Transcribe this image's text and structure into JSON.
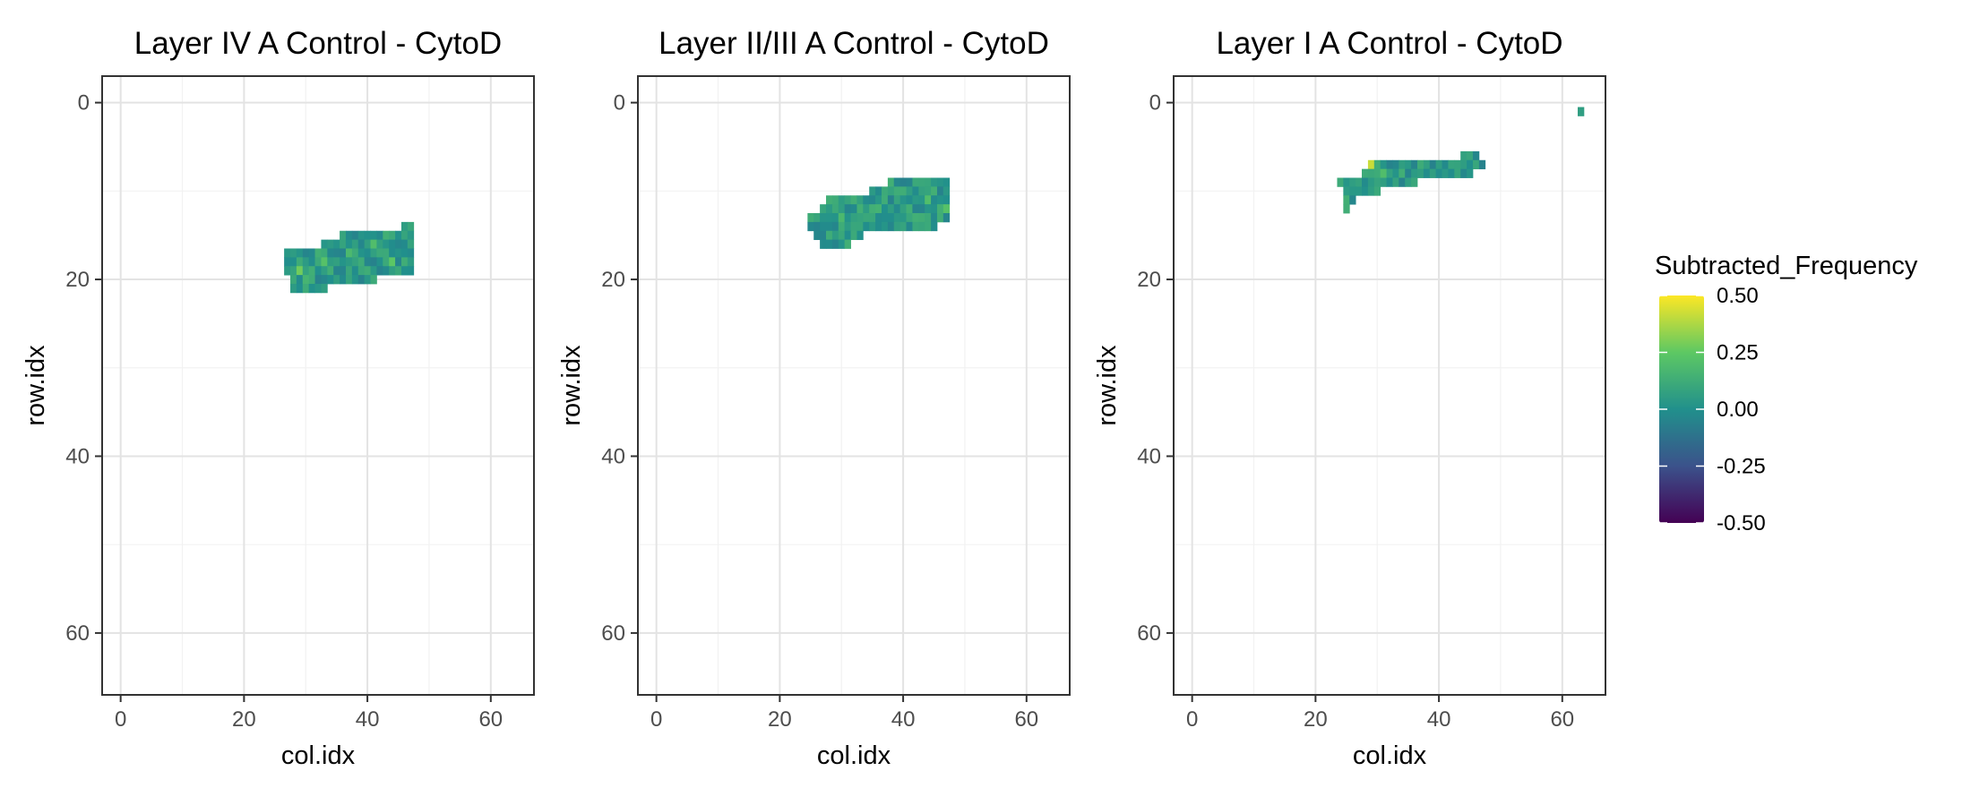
{
  "chart_data": [
    {
      "type": "heatmap",
      "title": "Layer IV A Control - CytoD",
      "xlabel": "col.idx",
      "ylabel": "row.idx",
      "xlim": [
        -3,
        67
      ],
      "ylim": [
        67,
        -3
      ],
      "y_reversed": true,
      "xticks": [
        0,
        20,
        40,
        60
      ],
      "yticks": [
        0,
        20,
        40,
        60
      ],
      "grid": true,
      "rows": [
        {
          "row": 14,
          "cols": [
            46,
            47
          ]
        },
        {
          "row": 15,
          "cols": [
            36,
            47
          ]
        },
        {
          "row": 16,
          "cols": [
            33,
            47
          ]
        },
        {
          "row": 17,
          "cols": [
            27,
            47
          ]
        },
        {
          "row": 18,
          "cols": [
            27,
            47
          ]
        },
        {
          "row": 19,
          "cols": [
            27,
            47
          ]
        },
        {
          "row": 20,
          "cols": [
            28,
            41
          ]
        },
        {
          "row": 21,
          "cols": [
            28,
            33
          ]
        }
      ],
      "highlights": [
        {
          "col": 29,
          "row": 19,
          "value": 0.28
        },
        {
          "col": 33,
          "row": 18,
          "value": 0.22
        },
        {
          "col": 41,
          "row": 16,
          "value": 0.2
        },
        {
          "col": 44,
          "row": 18,
          "value": 0.24
        },
        {
          "col": 37,
          "row": 17,
          "value": 0.18
        },
        {
          "col": 30,
          "row": 20,
          "value": 0.16
        }
      ]
    },
    {
      "type": "heatmap",
      "title": "Layer II/III A Control - CytoD",
      "xlabel": "col.idx",
      "ylabel": "row.idx",
      "xlim": [
        -3,
        67
      ],
      "ylim": [
        67,
        -3
      ],
      "y_reversed": true,
      "xticks": [
        0,
        20,
        40,
        60
      ],
      "yticks": [
        0,
        20,
        40,
        60
      ],
      "grid": true,
      "rows": [
        {
          "row": 9,
          "cols": [
            38,
            47
          ]
        },
        {
          "row": 10,
          "cols": [
            35,
            47
          ]
        },
        {
          "row": 11,
          "cols": [
            28,
            47
          ]
        },
        {
          "row": 12,
          "cols": [
            27,
            47
          ]
        },
        {
          "row": 13,
          "cols": [
            25,
            47
          ]
        },
        {
          "row": 14,
          "cols": [
            25,
            45
          ]
        },
        {
          "row": 15,
          "cols": [
            26,
            33
          ]
        },
        {
          "row": 16,
          "cols": [
            27,
            31
          ]
        }
      ],
      "highlights": [
        {
          "col": 44,
          "row": 11,
          "value": 0.2
        },
        {
          "col": 30,
          "row": 13,
          "value": 0.18
        },
        {
          "col": 47,
          "row": 12,
          "value": 0.22
        },
        {
          "col": 36,
          "row": 12,
          "value": 0.15
        }
      ]
    },
    {
      "type": "heatmap",
      "title": "Layer I A Control - CytoD",
      "xlabel": "col.idx",
      "ylabel": "row.idx",
      "xlim": [
        -3,
        67
      ],
      "ylim": [
        67,
        -3
      ],
      "y_reversed": true,
      "xticks": [
        0,
        20,
        40,
        60
      ],
      "yticks": [
        0,
        20,
        40,
        60
      ],
      "grid": true,
      "rows": [
        {
          "row": 1,
          "cols": [
            63,
            63
          ]
        },
        {
          "row": 6,
          "cols": [
            44,
            46
          ]
        },
        {
          "row": 7,
          "cols": [
            29,
            47
          ]
        },
        {
          "row": 8,
          "cols": [
            28,
            45
          ]
        },
        {
          "row": 9,
          "cols": [
            24,
            36
          ]
        },
        {
          "row": 10,
          "cols": [
            25,
            30
          ]
        },
        {
          "row": 11,
          "cols": [
            25,
            26
          ]
        },
        {
          "row": 12,
          "cols": [
            25,
            25
          ]
        }
      ],
      "highlights": [
        {
          "col": 29,
          "row": 7,
          "value": 0.42
        },
        {
          "col": 31,
          "row": 8,
          "value": 0.2
        }
      ]
    }
  ],
  "legend": {
    "title": "Subtracted_Frequency",
    "placement": "right",
    "min": -0.5,
    "max": 0.5,
    "labels": [
      "0.50",
      "0.25",
      "0.00",
      "-0.25",
      "-0.50"
    ],
    "label_values": [
      0.5,
      0.25,
      0,
      -0.25,
      -0.5
    ],
    "colormap": [
      "#440154",
      "#3b528b",
      "#21908c",
      "#5dc863",
      "#fde725"
    ]
  }
}
